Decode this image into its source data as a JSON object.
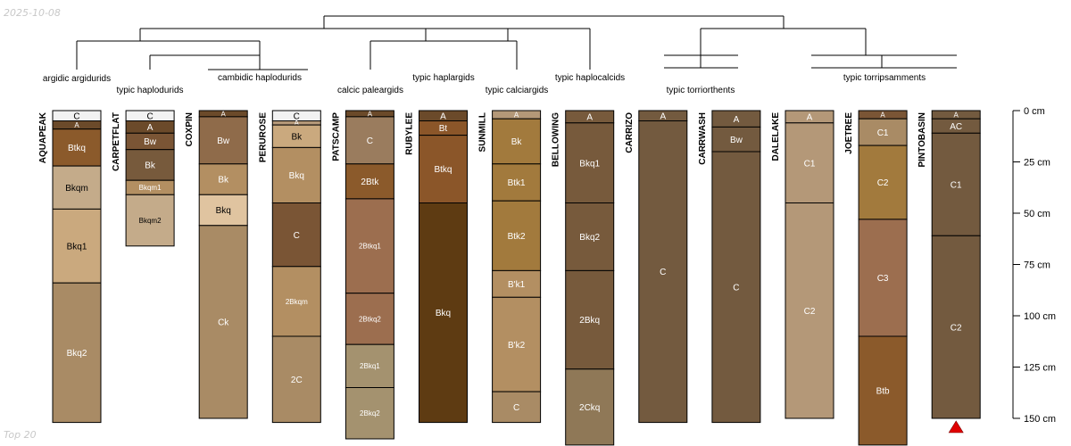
{
  "header": {
    "date_stamp": "2025-10-08",
    "footer_note": "Top 20"
  },
  "colors": {
    "line": "#000000",
    "tick_text": "#000000",
    "truncation_marker": "#e00000",
    "horizons": {
      "white": "#f2f2f2",
      "darkbrown": "#6b4a2a",
      "rust": "#8b5a2b",
      "tan": "#c4ab8a",
      "sand": "#caa97e",
      "buff": "#a98b65",
      "brownmid": "#8f6b4a",
      "lightbuff": "#e0c4a0",
      "medbuff": "#b38f62",
      "cocoa": "#7a5535",
      "taupe": "#9a7c5e",
      "chocolate": "#5e3b12",
      "ochre": "#a07435",
      "umber": "#775a3c",
      "mudbrown": "#735a3f",
      "fawn": "#b49878",
      "clay": "#9c6e4f",
      "copper": "#8b5629",
      "khaki": "#a4926f",
      "gold": "#a27a3d",
      "dusty": "#8f7857"
    }
  },
  "chart_data": {
    "type": "soil-profile-dendrogram",
    "depth_axis": {
      "unit": "cm",
      "min": 0,
      "max": 150,
      "ticks": [
        0,
        25,
        50,
        75,
        100,
        125,
        150
      ],
      "tick_labels": [
        "0 cm",
        "25 cm",
        "50 cm",
        "75 cm",
        "100 cm",
        "125 cm",
        "150 cm"
      ]
    },
    "dendrogram": {
      "leaf_order": [
        "AQUAPEAK",
        "CARPETFLAT",
        "COXPIN",
        "PERUROSE",
        "PATSCAMP",
        "RUBYLEE",
        "SUNMILL",
        "BELLOWING",
        "CARRIZO",
        "CARRWASH",
        "DALELAKE",
        "JOETREE",
        "PINTOBASIN"
      ],
      "group_labels": [
        {
          "label": "argidic argidurids",
          "members": [
            "AQUAPEAK"
          ]
        },
        {
          "label": "typic haplodurids",
          "members": [
            "CARPETFLAT"
          ]
        },
        {
          "label": "cambidic haplodurids",
          "members": [
            "COXPIN",
            "PERUROSE"
          ]
        },
        {
          "label": "calcic paleargids",
          "members": [
            "PATSCAMP"
          ]
        },
        {
          "label": "typic haplargids",
          "members": [
            "RUBYLEE"
          ]
        },
        {
          "label": "typic calciargids",
          "members": [
            "SUNMILL"
          ]
        },
        {
          "label": "typic haplocalcids",
          "members": [
            "BELLOWING"
          ]
        },
        {
          "label": "typic torriorthents",
          "members": [
            "CARRIZO",
            "CARRWASH"
          ]
        },
        {
          "label": "typic torripsamments",
          "members": [
            "DALELAKE",
            "JOETREE",
            "PINTOBASIN"
          ]
        }
      ]
    },
    "profiles": [
      {
        "name": "AQUAPEAK",
        "horizons": [
          {
            "name": "C",
            "top": 0,
            "bottom": 5,
            "color": "white"
          },
          {
            "name": "A",
            "top": 5,
            "bottom": 9,
            "color": "darkbrown"
          },
          {
            "name": "Btkq",
            "top": 9,
            "bottom": 27,
            "color": "rust"
          },
          {
            "name": "Bkqm",
            "top": 27,
            "bottom": 48,
            "color": "tan"
          },
          {
            "name": "Bkq1",
            "top": 48,
            "bottom": 84,
            "color": "sand"
          },
          {
            "name": "Bkq2",
            "top": 84,
            "bottom": 152,
            "color": "buff"
          }
        ]
      },
      {
        "name": "CARPETFLAT",
        "horizons": [
          {
            "name": "C",
            "top": 0,
            "bottom": 5,
            "color": "white"
          },
          {
            "name": "A",
            "top": 5,
            "bottom": 11,
            "color": "darkbrown"
          },
          {
            "name": "Bw",
            "top": 11,
            "bottom": 19,
            "color": "cocoa"
          },
          {
            "name": "Bk",
            "top": 19,
            "bottom": 34,
            "color": "umber"
          },
          {
            "name": "Bkqm1",
            "top": 34,
            "bottom": 41,
            "color": "medbuff"
          },
          {
            "name": "Bkqm2",
            "top": 41,
            "bottom": 66,
            "color": "tan"
          }
        ]
      },
      {
        "name": "COXPIN",
        "horizons": [
          {
            "name": "A",
            "top": 0,
            "bottom": 3,
            "color": "darkbrown"
          },
          {
            "name": "Bw",
            "top": 3,
            "bottom": 26,
            "color": "brownmid"
          },
          {
            "name": "Bk",
            "top": 26,
            "bottom": 41,
            "color": "medbuff"
          },
          {
            "name": "Bkq",
            "top": 41,
            "bottom": 56,
            "color": "lightbuff"
          },
          {
            "name": "Ck",
            "top": 56,
            "bottom": 150,
            "color": "buff"
          }
        ]
      },
      {
        "name": "PERUROSE",
        "horizons": [
          {
            "name": "C",
            "top": 0,
            "bottom": 5,
            "color": "white"
          },
          {
            "name": "A",
            "top": 5,
            "bottom": 7,
            "color": "fawn"
          },
          {
            "name": "Bk",
            "top": 7,
            "bottom": 18,
            "color": "sand"
          },
          {
            "name": "Bkq",
            "top": 18,
            "bottom": 45,
            "color": "medbuff"
          },
          {
            "name": "C",
            "top": 45,
            "bottom": 76,
            "color": "cocoa"
          },
          {
            "name": "2Bkqm",
            "top": 76,
            "bottom": 110,
            "color": "medbuff"
          },
          {
            "name": "2C",
            "top": 110,
            "bottom": 152,
            "color": "buff"
          }
        ]
      },
      {
        "name": "PATSCAMP",
        "horizons": [
          {
            "name": "A",
            "top": 0,
            "bottom": 3,
            "color": "darkbrown"
          },
          {
            "name": "C",
            "top": 3,
            "bottom": 26,
            "color": "taupe"
          },
          {
            "name": "2Btk",
            "top": 26,
            "bottom": 43,
            "color": "rust"
          },
          {
            "name": "2Btkq1",
            "top": 43,
            "bottom": 89,
            "color": "clay"
          },
          {
            "name": "2Btkq2",
            "top": 89,
            "bottom": 114,
            "color": "clay"
          },
          {
            "name": "2Bkq1",
            "top": 114,
            "bottom": 135,
            "color": "khaki"
          },
          {
            "name": "2Bkq2",
            "top": 135,
            "bottom": 160,
            "color": "khaki"
          }
        ]
      },
      {
        "name": "RUBYLEE",
        "horizons": [
          {
            "name": "A",
            "top": 0,
            "bottom": 5,
            "color": "darkbrown"
          },
          {
            "name": "Bt",
            "top": 5,
            "bottom": 12,
            "color": "copper"
          },
          {
            "name": "Btkq",
            "top": 12,
            "bottom": 45,
            "color": "copper"
          },
          {
            "name": "Bkq",
            "top": 45,
            "bottom": 152,
            "color": "chocolate"
          }
        ]
      },
      {
        "name": "SUNMILL",
        "horizons": [
          {
            "name": "A",
            "top": 0,
            "bottom": 4,
            "color": "fawn"
          },
          {
            "name": "Bk",
            "top": 4,
            "bottom": 26,
            "color": "gold"
          },
          {
            "name": "Btk1",
            "top": 26,
            "bottom": 44,
            "color": "gold"
          },
          {
            "name": "Btk2",
            "top": 44,
            "bottom": 78,
            "color": "gold"
          },
          {
            "name": "B'k1",
            "top": 78,
            "bottom": 91,
            "color": "medbuff"
          },
          {
            "name": "B'k2",
            "top": 91,
            "bottom": 137,
            "color": "medbuff"
          },
          {
            "name": "C",
            "top": 137,
            "bottom": 152,
            "color": "buff"
          }
        ]
      },
      {
        "name": "BELLOWING",
        "horizons": [
          {
            "name": "A",
            "top": 0,
            "bottom": 6,
            "color": "umber"
          },
          {
            "name": "Bkq1",
            "top": 6,
            "bottom": 45,
            "color": "umber"
          },
          {
            "name": "Bkq2",
            "top": 45,
            "bottom": 78,
            "color": "umber"
          },
          {
            "name": "2Bkq",
            "top": 78,
            "bottom": 126,
            "color": "umber"
          },
          {
            "name": "2Ckq",
            "top": 126,
            "bottom": 163,
            "color": "dusty"
          }
        ]
      },
      {
        "name": "CARRIZO",
        "horizons": [
          {
            "name": "A",
            "top": 0,
            "bottom": 5,
            "color": "mudbrown"
          },
          {
            "name": "C",
            "top": 5,
            "bottom": 152,
            "color": "mudbrown"
          }
        ]
      },
      {
        "name": "CARRWASH",
        "horizons": [
          {
            "name": "A",
            "top": 0,
            "bottom": 8,
            "color": "mudbrown"
          },
          {
            "name": "Bw",
            "top": 8,
            "bottom": 20,
            "color": "mudbrown"
          },
          {
            "name": "C",
            "top": 20,
            "bottom": 152,
            "color": "mudbrown"
          }
        ]
      },
      {
        "name": "DALELAKE",
        "horizons": [
          {
            "name": "A",
            "top": 0,
            "bottom": 6,
            "color": "fawn"
          },
          {
            "name": "C1",
            "top": 6,
            "bottom": 45,
            "color": "fawn"
          },
          {
            "name": "C2",
            "top": 45,
            "bottom": 150,
            "color": "fawn"
          }
        ]
      },
      {
        "name": "JOETREE",
        "horizons": [
          {
            "name": "A",
            "top": 0,
            "bottom": 4,
            "color": "cocoa"
          },
          {
            "name": "C1",
            "top": 4,
            "bottom": 17,
            "color": "buff"
          },
          {
            "name": "C2",
            "top": 17,
            "bottom": 53,
            "color": "gold"
          },
          {
            "name": "C3",
            "top": 53,
            "bottom": 110,
            "color": "clay"
          },
          {
            "name": "Btb",
            "top": 110,
            "bottom": 163,
            "color": "rust"
          }
        ]
      },
      {
        "name": "PINTOBASIN",
        "horizons": [
          {
            "name": "A",
            "top": 0,
            "bottom": 4,
            "color": "mudbrown"
          },
          {
            "name": "AC",
            "top": 4,
            "bottom": 11,
            "color": "mudbrown"
          },
          {
            "name": "C1",
            "top": 11,
            "bottom": 61,
            "color": "mudbrown"
          },
          {
            "name": "C2",
            "top": 61,
            "bottom": 150,
            "color": "mudbrown"
          }
        ],
        "truncated": true
      }
    ]
  }
}
